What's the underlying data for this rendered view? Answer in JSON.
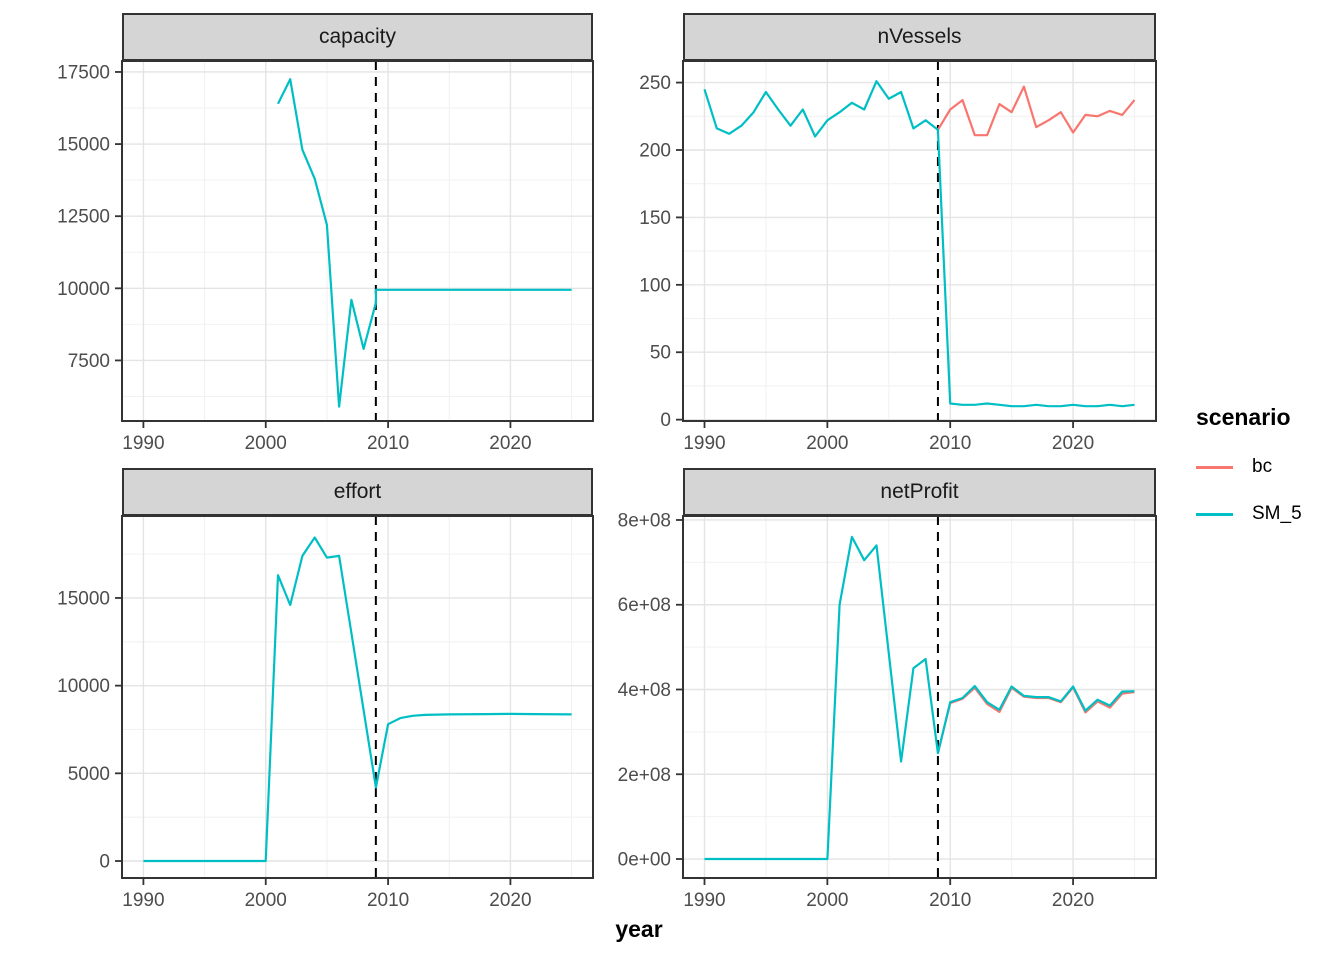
{
  "chart_data": {
    "type": "line",
    "xlabel": "year",
    "x_domain": [
      1988.25,
      2026.75
    ],
    "x_ticks": [
      1990,
      2000,
      2010,
      2020
    ],
    "x_tick_labels": [
      "1990",
      "2000",
      "2010",
      "2020"
    ],
    "x_minor": [
      1995,
      2005,
      2015,
      2025
    ],
    "vline_year": 2009,
    "vline_style": "dashed-black",
    "grid": "on",
    "legend": {
      "title": "scenario",
      "position": "right",
      "items": [
        {
          "label": "bc",
          "color": "#F8766D"
        },
        {
          "label": "SM_5",
          "color": "#00BFC4"
        }
      ]
    },
    "panels": [
      {
        "title": "capacity",
        "y_domain": [
          5400,
          17880
        ],
        "y_ticks": [
          7500,
          10000,
          12500,
          15000,
          17500
        ],
        "y_tick_labels": [
          "7500",
          "10000",
          "12500",
          "15000",
          "17500"
        ],
        "y_minor": [
          6250,
          8750,
          11250,
          13750,
          16250
        ],
        "series": [
          {
            "name": "SM_5",
            "color": "#00BFC4",
            "points": [
              [
                2001,
                16400
              ],
              [
                2002,
                17250
              ],
              [
                2003,
                14800
              ],
              [
                2004,
                13800
              ],
              [
                2005,
                12200
              ],
              [
                2006,
                5900
              ],
              [
                2007,
                9600
              ],
              [
                2008,
                7900
              ],
              [
                2009,
                9500
              ],
              [
                2009,
                9950
              ],
              [
                2025,
                9950
              ]
            ]
          }
        ]
      },
      {
        "title": "nVessels",
        "y_domain": [
          -1,
          266
        ],
        "y_ticks": [
          0,
          50,
          100,
          150,
          200,
          250
        ],
        "y_tick_labels": [
          "0",
          "50",
          "100",
          "150",
          "200",
          "250"
        ],
        "y_minor": [
          25,
          75,
          125,
          175,
          225
        ],
        "series": [
          {
            "name": "bc",
            "color": "#F8766D",
            "points": [
              [
                2009,
                215
              ],
              [
                2010,
                230
              ],
              [
                2011,
                237
              ],
              [
                2012,
                211
              ],
              [
                2013,
                211
              ],
              [
                2014,
                234
              ],
              [
                2015,
                228
              ],
              [
                2016,
                247
              ],
              [
                2017,
                217
              ],
              [
                2018,
                222
              ],
              [
                2019,
                228
              ],
              [
                2020,
                213
              ],
              [
                2021,
                226
              ],
              [
                2022,
                225
              ],
              [
                2023,
                229
              ],
              [
                2024,
                226
              ],
              [
                2025,
                237
              ]
            ]
          },
          {
            "name": "SM_5",
            "color": "#00BFC4",
            "points": [
              [
                1990,
                245
              ],
              [
                1991,
                216
              ],
              [
                1992,
                212
              ],
              [
                1993,
                218
              ],
              [
                1994,
                228
              ],
              [
                1995,
                243
              ],
              [
                1996,
                230
              ],
              [
                1997,
                218
              ],
              [
                1998,
                230
              ],
              [
                1999,
                210
              ],
              [
                2000,
                222
              ],
              [
                2001,
                228
              ],
              [
                2002,
                235
              ],
              [
                2003,
                230
              ],
              [
                2004,
                251
              ],
              [
                2005,
                238
              ],
              [
                2006,
                243
              ],
              [
                2007,
                216
              ],
              [
                2008,
                222
              ],
              [
                2009,
                215
              ],
              [
                2010,
                12
              ],
              [
                2011,
                11
              ],
              [
                2012,
                11
              ],
              [
                2013,
                12
              ],
              [
                2014,
                11
              ],
              [
                2015,
                10
              ],
              [
                2016,
                10
              ],
              [
                2017,
                11
              ],
              [
                2018,
                10
              ],
              [
                2019,
                10
              ],
              [
                2020,
                11
              ],
              [
                2021,
                10
              ],
              [
                2022,
                10
              ],
              [
                2023,
                11
              ],
              [
                2024,
                10
              ],
              [
                2025,
                11
              ]
            ]
          }
        ]
      },
      {
        "title": "effort",
        "y_domain": [
          -969,
          19674
        ],
        "y_ticks": [
          0,
          5000,
          10000,
          15000
        ],
        "y_tick_labels": [
          "0",
          "5000",
          "10000",
          "15000"
        ],
        "y_minor": [
          2500,
          7500,
          12500,
          17500
        ],
        "series": [
          {
            "name": "SM_5",
            "color": "#00BFC4",
            "points": [
              [
                1990,
                0
              ],
              [
                2000,
                0
              ],
              [
                2001,
                16300
              ],
              [
                2002,
                14600
              ],
              [
                2003,
                17400
              ],
              [
                2004,
                18450
              ],
              [
                2005,
                17300
              ],
              [
                2006,
                17400
              ],
              [
                2007,
                13000
              ],
              [
                2008,
                8600
              ],
              [
                2009,
                4200
              ],
              [
                2010,
                7800
              ],
              [
                2011,
                8150
              ],
              [
                2012,
                8280
              ],
              [
                2013,
                8330
              ],
              [
                2015,
                8360
              ],
              [
                2018,
                8380
              ],
              [
                2020,
                8390
              ],
              [
                2022,
                8380
              ],
              [
                2025,
                8360
              ]
            ]
          }
        ]
      },
      {
        "title": "netProfit",
        "y_domain": [
          -44800000,
          809400000
        ],
        "y_ticks": [
          0,
          200000000,
          400000000,
          600000000,
          800000000
        ],
        "y_tick_labels": [
          "0e+00",
          "2e+08",
          "4e+08",
          "6e+08",
          "8e+08"
        ],
        "y_minor": [
          100000000,
          300000000,
          500000000,
          700000000
        ],
        "series": [
          {
            "name": "bc",
            "color": "#F8766D",
            "points": [
              [
                2009,
                250000000
              ],
              [
                2010,
                368000000
              ],
              [
                2011,
                378000000
              ],
              [
                2012,
                404000000
              ],
              [
                2013,
                366000000
              ],
              [
                2014,
                347000000
              ],
              [
                2015,
                404000000
              ],
              [
                2016,
                383000000
              ],
              [
                2017,
                380000000
              ],
              [
                2018,
                380000000
              ],
              [
                2019,
                370000000
              ],
              [
                2020,
                405000000
              ],
              [
                2021,
                346000000
              ],
              [
                2022,
                372000000
              ],
              [
                2023,
                357000000
              ],
              [
                2024,
                390000000
              ],
              [
                2025,
                394000000
              ]
            ]
          },
          {
            "name": "SM_5",
            "color": "#00BFC4",
            "points": [
              [
                1990,
                0
              ],
              [
                2000,
                0
              ],
              [
                2001,
                600000000
              ],
              [
                2002,
                760000000
              ],
              [
                2003,
                705000000
              ],
              [
                2004,
                740000000
              ],
              [
                2005,
                485000000
              ],
              [
                2006,
                230000000
              ],
              [
                2007,
                450000000
              ],
              [
                2008,
                472000000
              ],
              [
                2009,
                250000000
              ],
              [
                2010,
                370000000
              ],
              [
                2011,
                380000000
              ],
              [
                2012,
                408000000
              ],
              [
                2013,
                370000000
              ],
              [
                2014,
                352000000
              ],
              [
                2015,
                407000000
              ],
              [
                2016,
                385000000
              ],
              [
                2017,
                382000000
              ],
              [
                2018,
                382000000
              ],
              [
                2019,
                372000000
              ],
              [
                2020,
                407000000
              ],
              [
                2021,
                350000000
              ],
              [
                2022,
                376000000
              ],
              [
                2023,
                362000000
              ],
              [
                2024,
                395000000
              ],
              [
                2025,
                396000000
              ]
            ]
          }
        ]
      }
    ]
  }
}
